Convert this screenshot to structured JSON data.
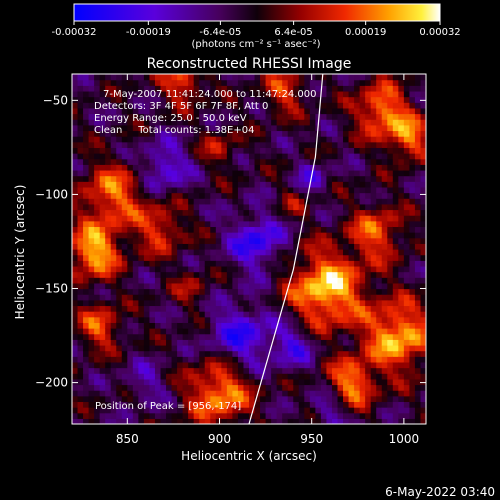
{
  "chart_data": {
    "type": "heatmap",
    "title": "Reconstructed RHESSI Image",
    "xlabel": "Heliocentric X (arcsec)",
    "ylabel": "Heliocentric Y (arcsec)",
    "xlim": [
      820,
      1012
    ],
    "ylim": [
      -222,
      -36
    ],
    "x_ticks": [
      850,
      900,
      950,
      1000
    ],
    "y_ticks": [
      -50,
      -100,
      -150,
      -200
    ],
    "colorbar": {
      "range": [
        -0.00032,
        0.00032
      ],
      "tick_values": [
        -0.00032,
        -0.00019,
        -6.4e-05,
        6.4e-05,
        0.00019,
        0.00032
      ],
      "tick_labels": [
        "-0.00032",
        "-0.00019",
        "-6.4e-05",
        "6.4e-05",
        "0.00019",
        "0.00032"
      ],
      "units": "(photons cm⁻² s⁻¹ asec⁻²)"
    },
    "annotations": [
      "7-May-2007 11:41:24.000 to 11:47:24.000",
      "Detectors: 3F 4F 5F 6F 7F 8F, Att 0",
      "Energy Range: 25.0 - 50.0 keV",
      "Clean     Total counts: 1.38E+04"
    ],
    "peak_label": "Position of Peak = [956,-174]",
    "footer": "6-May-2022 03:40",
    "limb_curve": [
      [
        916,
        -222
      ],
      [
        940,
        -140
      ],
      [
        952,
        -80
      ],
      [
        956,
        -36
      ]
    ],
    "bright_regions": [
      {
        "x": 832,
        "y": -130,
        "r": 10,
        "v": 0.00028
      },
      {
        "x": 842,
        "y": -100,
        "r": 12,
        "v": 0.00022
      },
      {
        "x": 880,
        "y": -40,
        "r": 8,
        "v": 0.0002
      },
      {
        "x": 868,
        "y": -118,
        "r": 9,
        "v": 0.00018
      },
      {
        "x": 900,
        "y": -75,
        "r": 7,
        "v": 0.00012
      },
      {
        "x": 935,
        "y": -45,
        "r": 8,
        "v": 0.00017
      },
      {
        "x": 988,
        "y": -55,
        "r": 10,
        "v": 0.00025
      },
      {
        "x": 1003,
        "y": -70,
        "r": 8,
        "v": 0.00022
      },
      {
        "x": 958,
        "y": -150,
        "r": 14,
        "v": 0.00031
      },
      {
        "x": 997,
        "y": -175,
        "r": 13,
        "v": 0.00028
      },
      {
        "x": 985,
        "y": -120,
        "r": 10,
        "v": 0.0002
      },
      {
        "x": 972,
        "y": -200,
        "r": 9,
        "v": 0.00024
      },
      {
        "x": 900,
        "y": -205,
        "r": 12,
        "v": 0.00026
      },
      {
        "x": 835,
        "y": -170,
        "r": 8,
        "v": 0.0002
      },
      {
        "x": 885,
        "y": -150,
        "r": 7,
        "v": 0.0001
      },
      {
        "x": 940,
        "y": -105,
        "r": 6,
        "v": 8e-05
      },
      {
        "x": 920,
        "y": -125,
        "r": 10,
        "v": -0.00022
      },
      {
        "x": 912,
        "y": -175,
        "r": 12,
        "v": -0.0002
      },
      {
        "x": 870,
        "y": -85,
        "r": 9,
        "v": -0.00018
      },
      {
        "x": 940,
        "y": -180,
        "r": 8,
        "v": -0.00016
      },
      {
        "x": 960,
        "y": -215,
        "r": 7,
        "v": -0.00012
      },
      {
        "x": 860,
        "y": -200,
        "r": 8,
        "v": -0.0001
      },
      {
        "x": 950,
        "y": -90,
        "r": 6,
        "v": -0.00012
      }
    ]
  }
}
